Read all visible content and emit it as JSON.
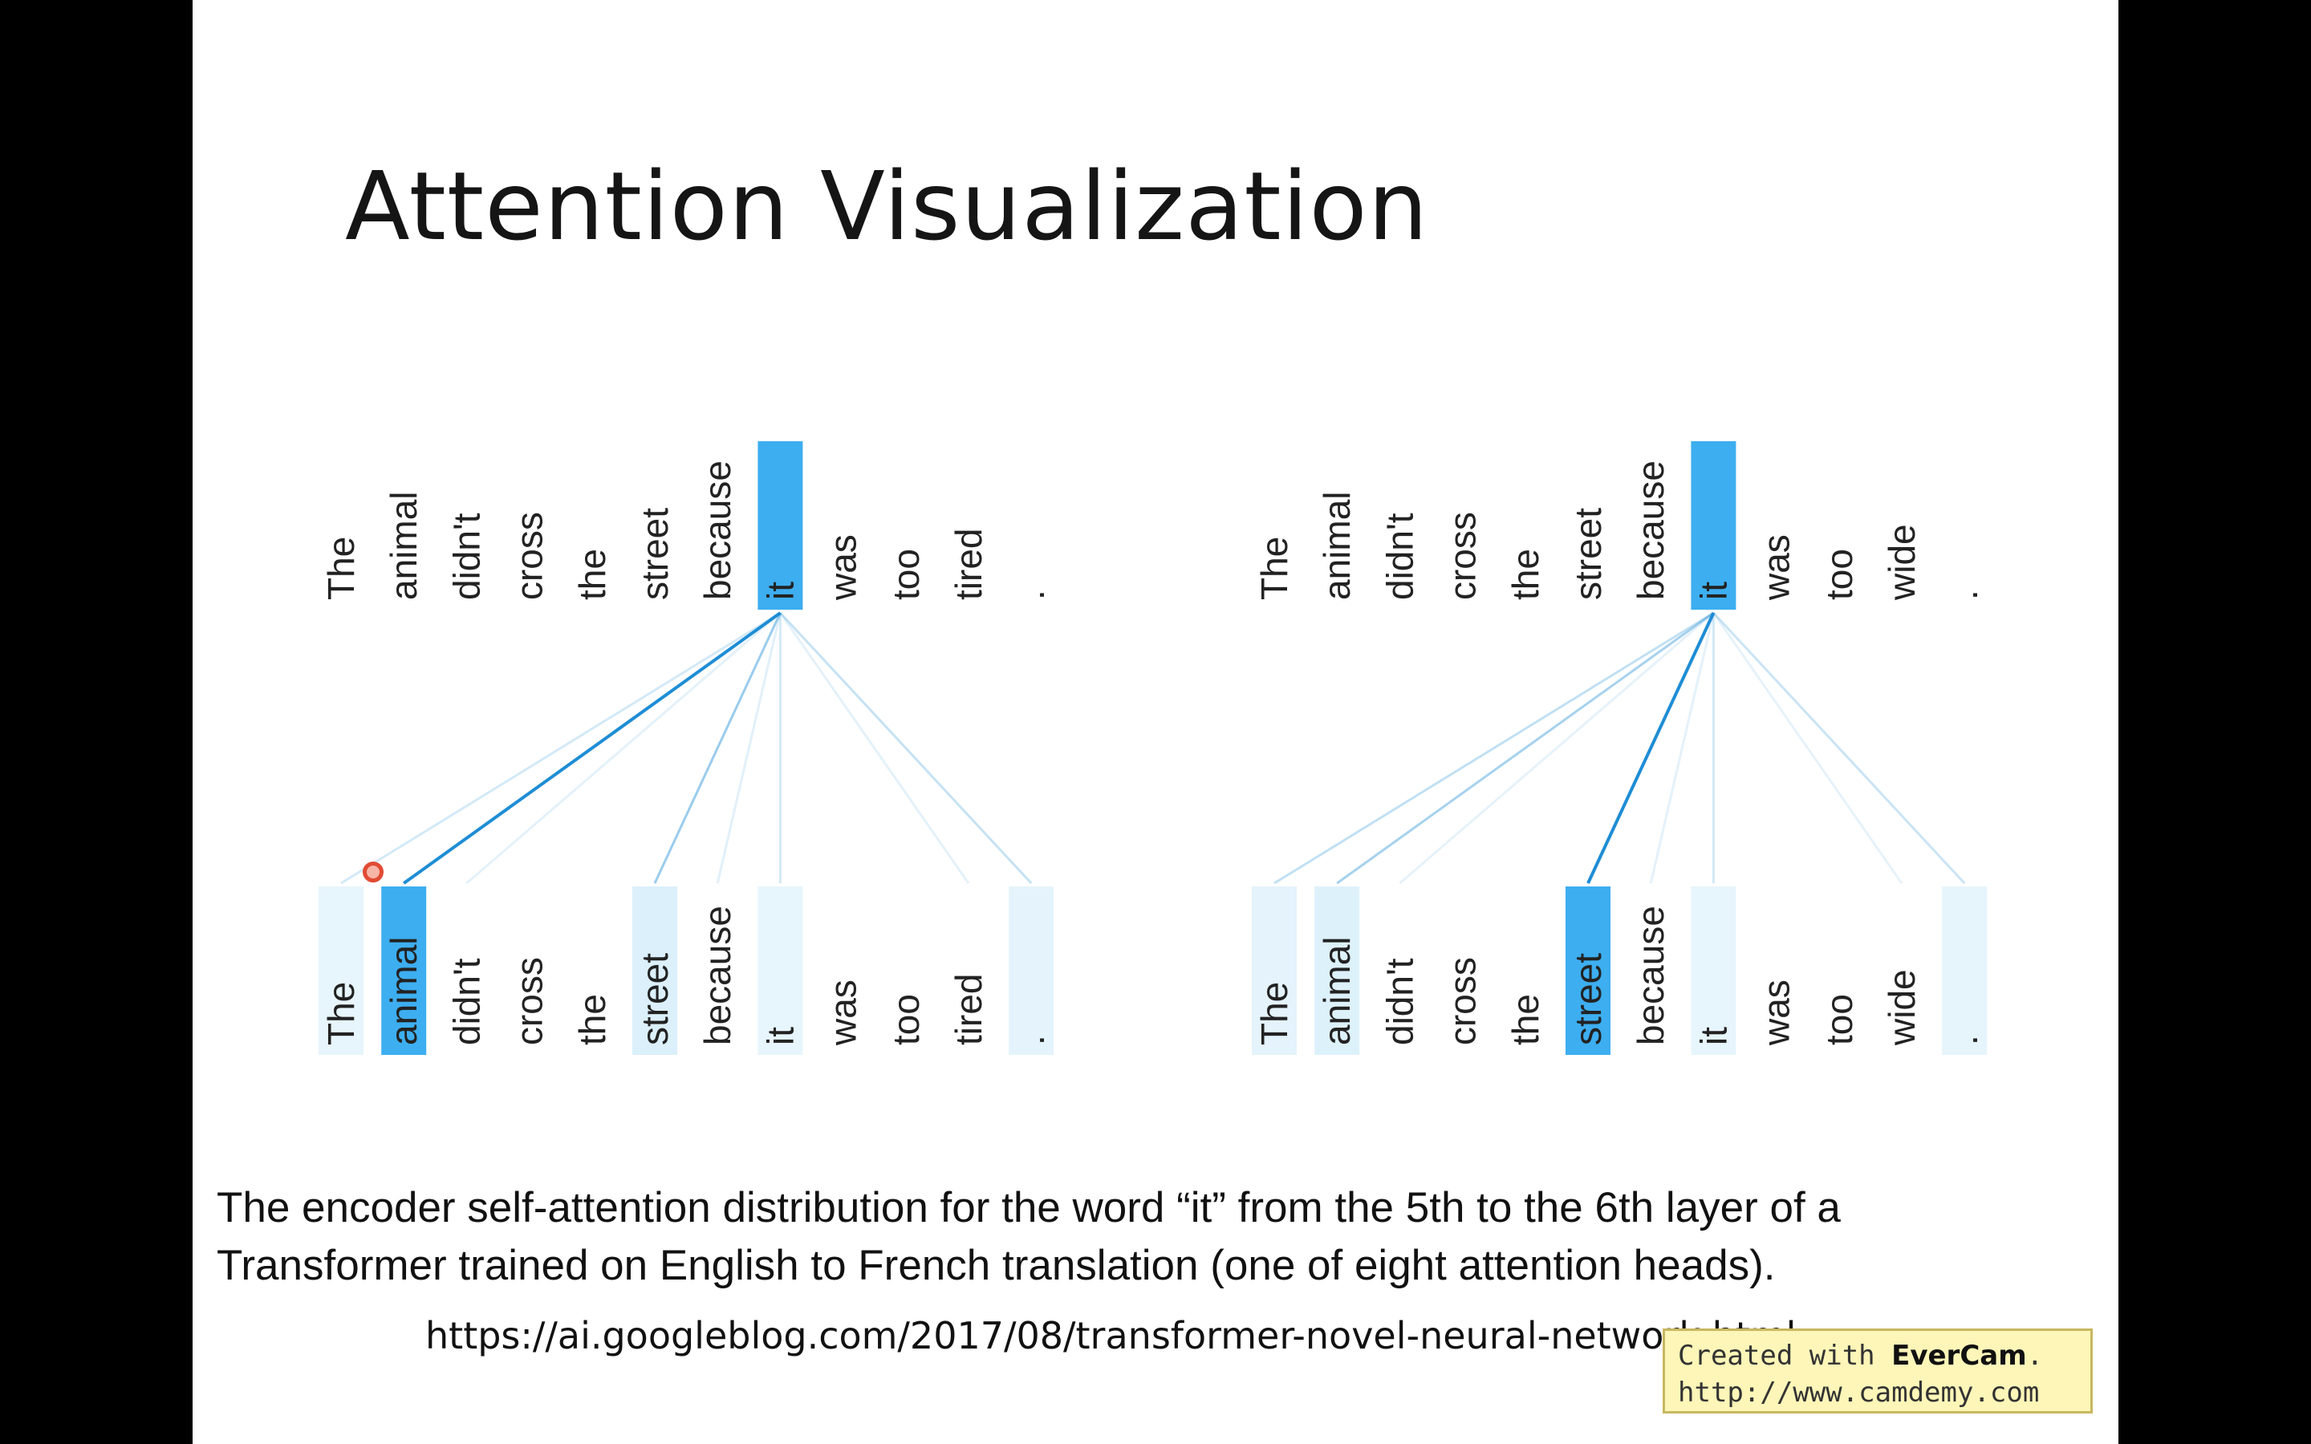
{
  "title": "Attention Visualization",
  "colors": {
    "highlight": "#3daef0",
    "highlight_light": "#cdeaf9",
    "line": "#1a8bd4"
  },
  "panels": [
    {
      "top_tokens": [
        "The",
        "animal",
        "didn't",
        "cross",
        "the",
        "street",
        "because",
        "it",
        "was",
        "too",
        "tired",
        "."
      ],
      "bottom_tokens": [
        "The",
        "animal",
        "didn't",
        "cross",
        "the",
        "street",
        "because",
        "it",
        "was",
        "too",
        "tired",
        "."
      ],
      "query_index": 7,
      "attention": [
        0.12,
        0.95,
        0.04,
        0.02,
        0.02,
        0.38,
        0.05,
        0.12,
        0.02,
        0.02,
        0.04,
        0.18
      ]
    },
    {
      "top_tokens": [
        "The",
        "animal",
        "didn't",
        "cross",
        "the",
        "street",
        "because",
        "it",
        "was",
        "too",
        "wide",
        "."
      ],
      "bottom_tokens": [
        "The",
        "animal",
        "didn't",
        "cross",
        "the",
        "street",
        "because",
        "it",
        "was",
        "too",
        "wide",
        "."
      ],
      "query_index": 7,
      "attention": [
        0.2,
        0.32,
        0.03,
        0.02,
        0.02,
        0.95,
        0.04,
        0.12,
        0.02,
        0.02,
        0.03,
        0.16
      ]
    }
  ],
  "caption": {
    "line1": "The encoder self-attention distribution for the word “it” from the 5th to the 6th layer of a",
    "line2": "Transformer trained on English to French translation (one of eight attention heads)."
  },
  "source_url": "https://ai.googleblog.com/2017/08/transformer-novel-neural-network.html",
  "watermark": {
    "prefix": "Created with ",
    "brand": "EverCam",
    "suffix": ".",
    "url": "http://www.camdemy.com"
  }
}
